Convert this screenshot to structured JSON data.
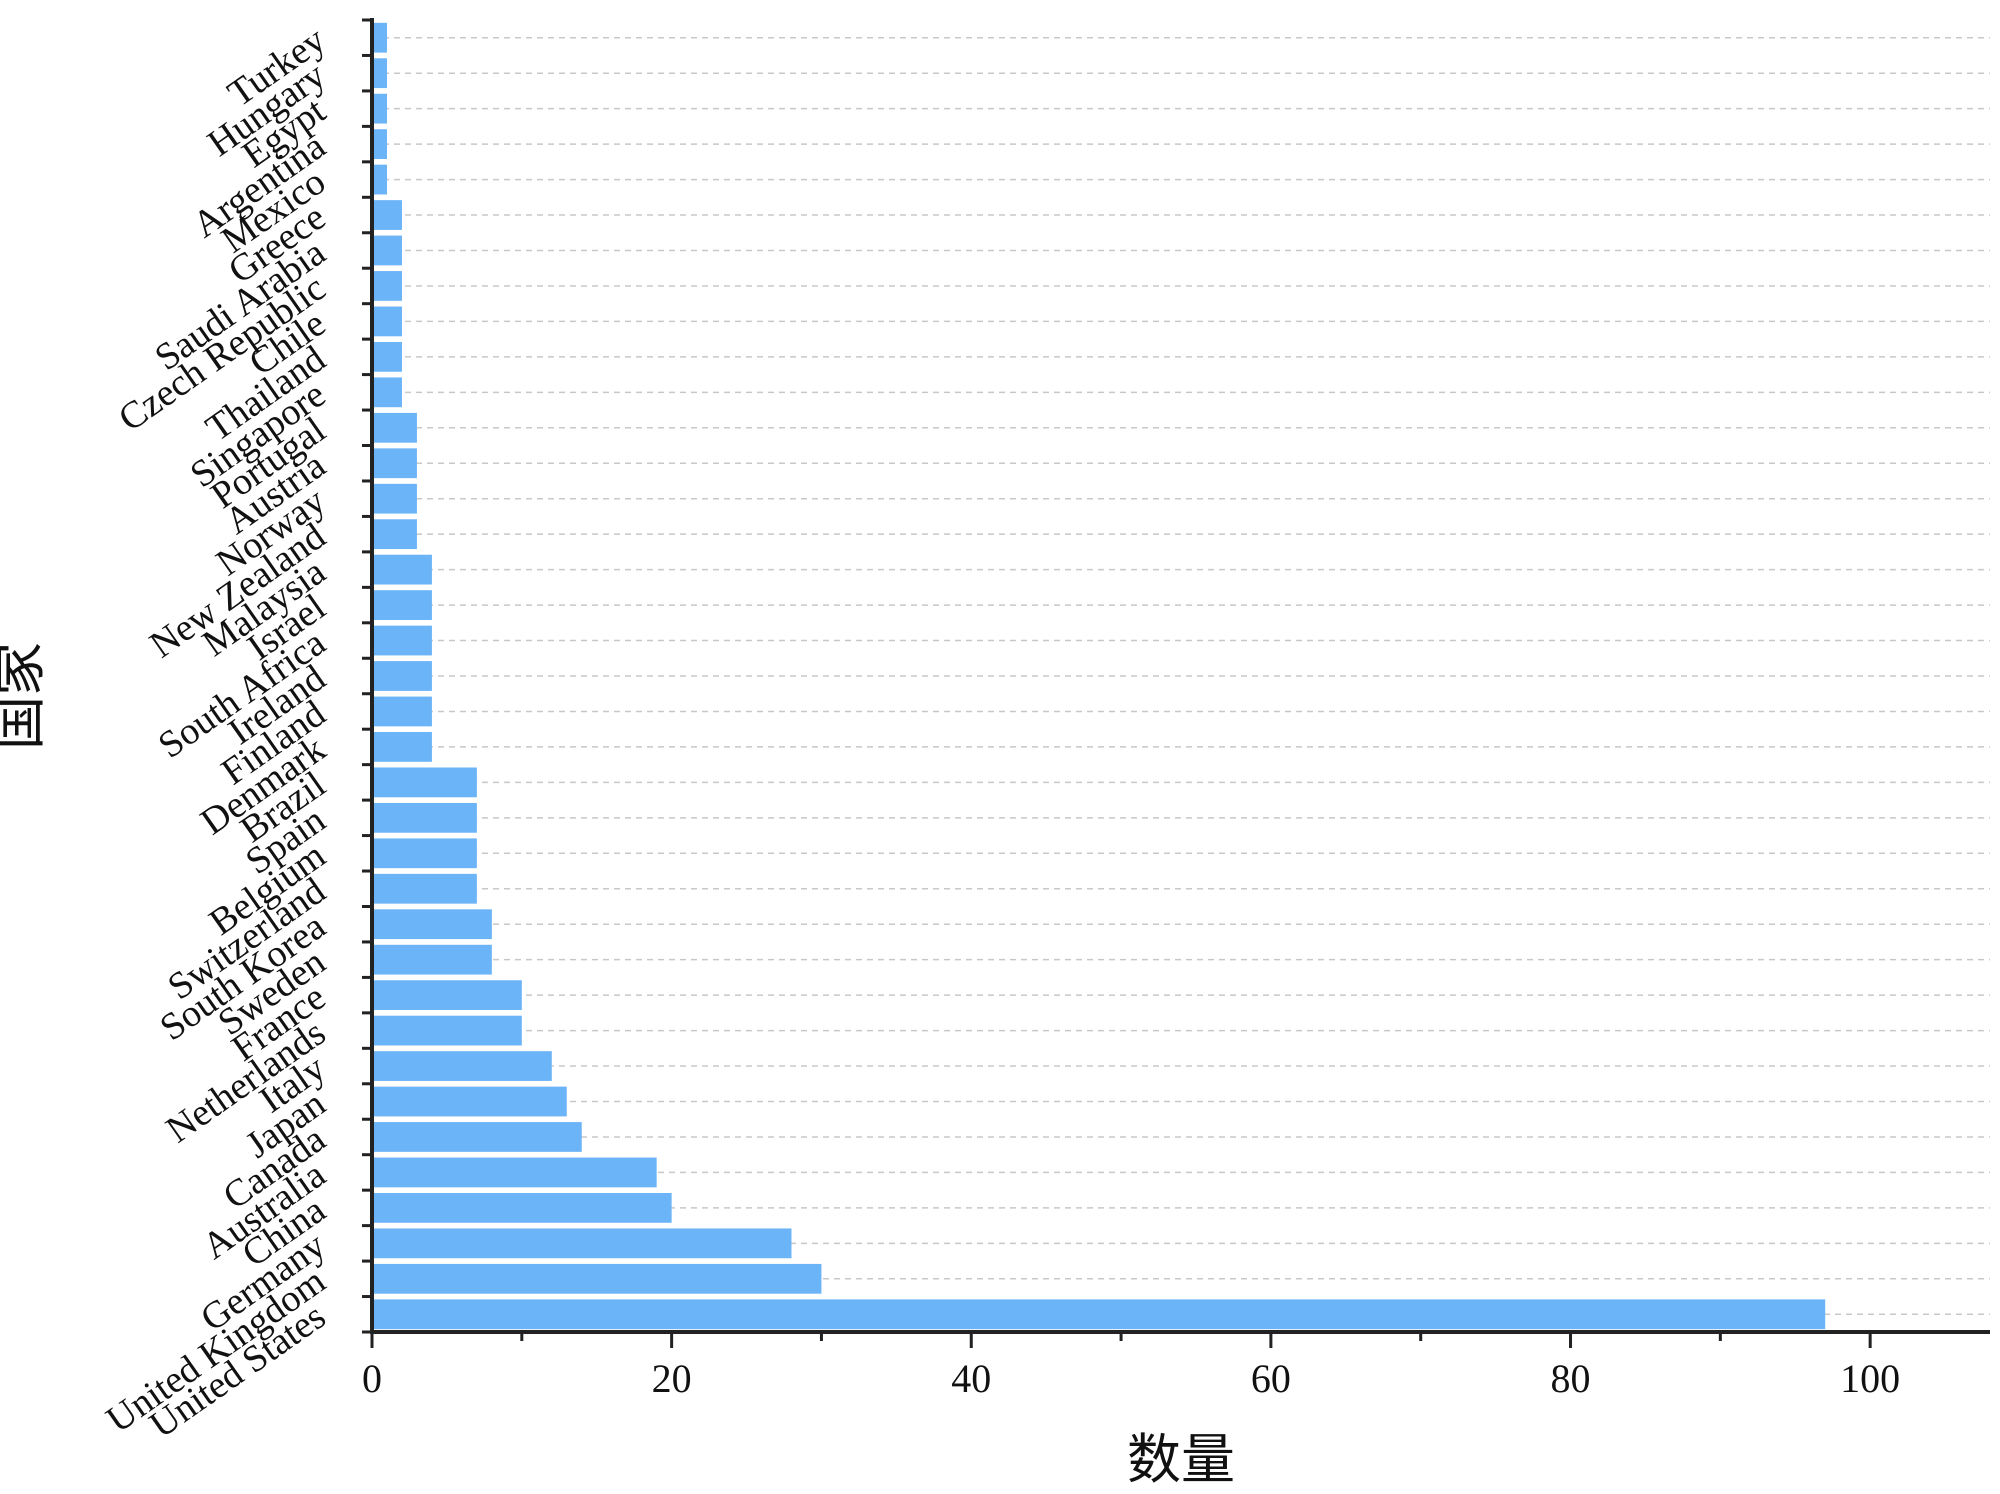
{
  "chart_data": {
    "type": "bar",
    "orientation": "horizontal",
    "title": "",
    "xlabel": "数量",
    "ylabel": "国家",
    "xlim": [
      0,
      108
    ],
    "xticks": [
      0,
      20,
      40,
      60,
      80,
      100
    ],
    "grid": "dashed horizontal",
    "bar_color": "#6cb4f8",
    "categories": [
      "United States",
      "United Kingdom",
      "Germany",
      "China",
      "Australia",
      "Canada",
      "Japan",
      "Italy",
      "Netherlands",
      "France",
      "Sweden",
      "South Korea",
      "Switzerland",
      "Belgium",
      "Spain",
      "Brazil",
      "Denmark",
      "Finland",
      "Ireland",
      "South Africa",
      "Israel",
      "Malaysia",
      "New Zealand",
      "Norway",
      "Austria",
      "Portugal",
      "Singapore",
      "Thailand",
      "Chile",
      "Czech Republic",
      "Saudi Arabia",
      "Greece",
      "Mexico",
      "Argentina",
      "Egypt",
      "Hungary",
      "Turkey"
    ],
    "values": [
      97,
      30,
      28,
      20,
      19,
      14,
      13,
      12,
      10,
      10,
      8,
      8,
      7,
      7,
      7,
      7,
      4,
      4,
      4,
      4,
      4,
      4,
      3,
      3,
      3,
      3,
      2,
      2,
      2,
      2,
      2,
      2,
      1,
      1,
      1,
      1,
      1
    ]
  }
}
